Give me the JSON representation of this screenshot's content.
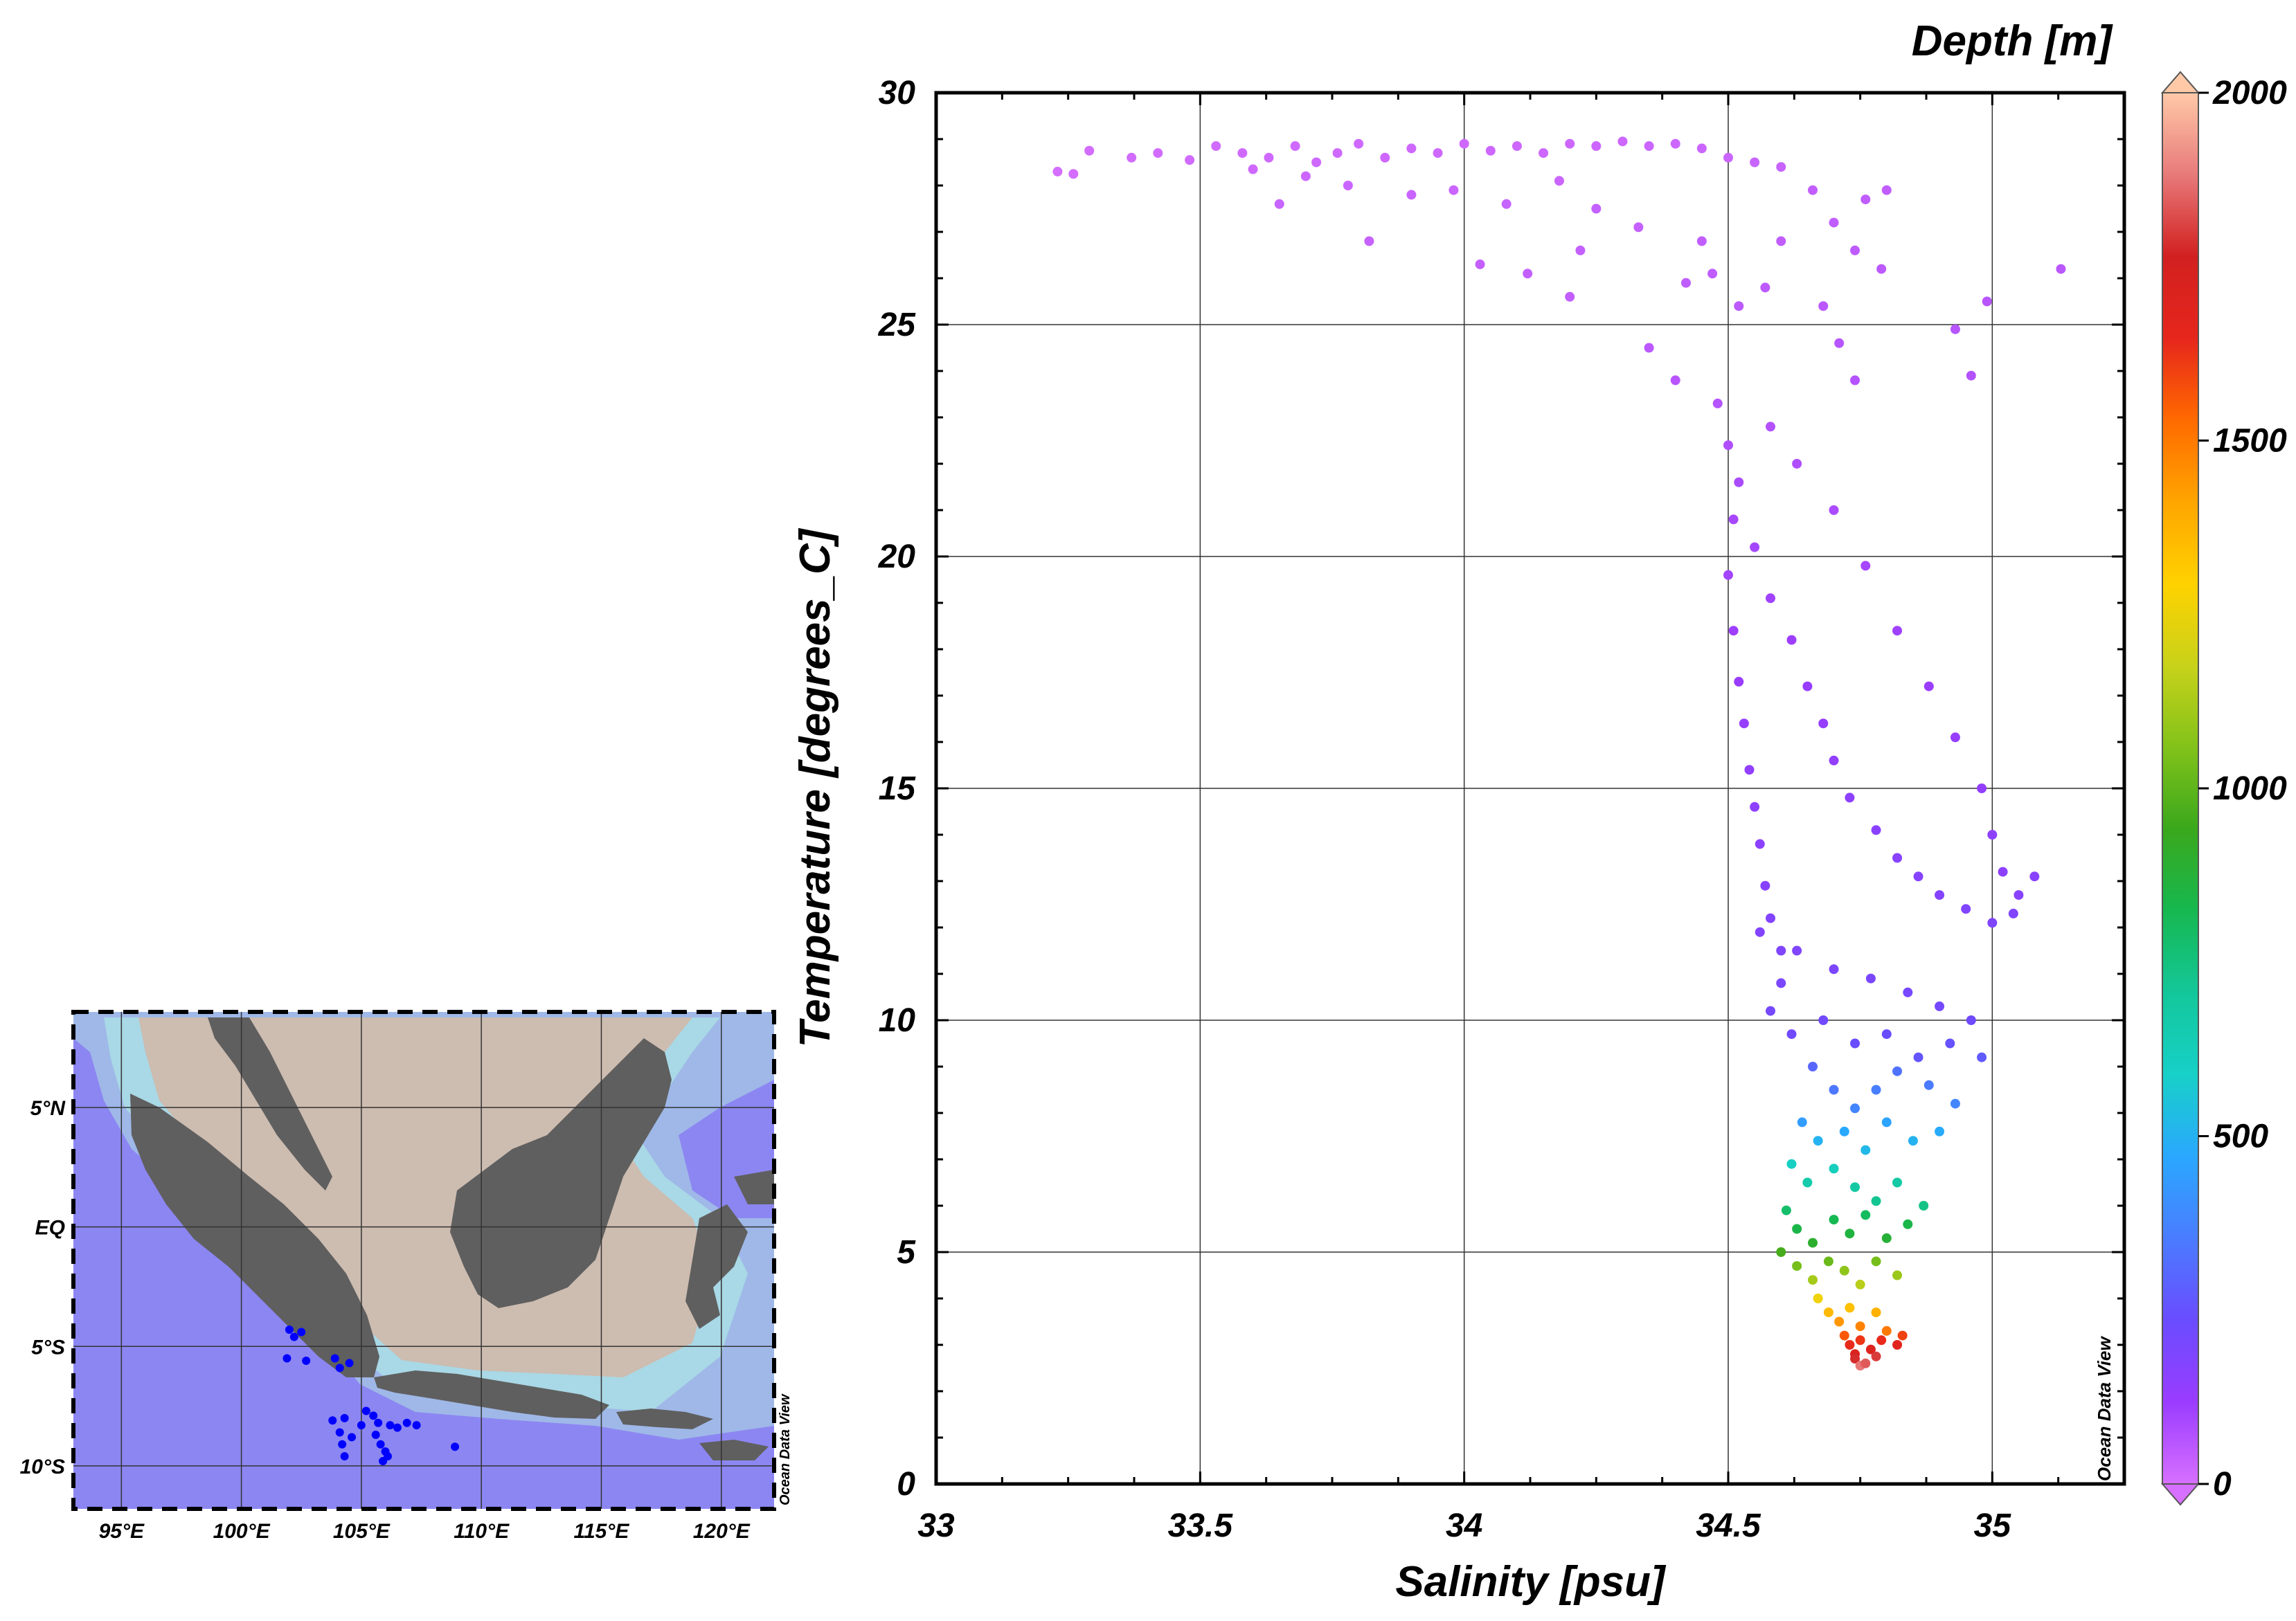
{
  "chart_data": [
    {
      "type": "scatter",
      "title": "",
      "xlabel": "Salinity [psu]",
      "ylabel": "Temperature [degrees_C]",
      "xlim": [
        33,
        35.25
      ],
      "ylim": [
        0,
        30
      ],
      "xticks": [
        33,
        33.5,
        34,
        34.5,
        35
      ],
      "xtick_labels": [
        "33",
        "33.5",
        "34",
        "34.5",
        "35"
      ],
      "yticks": [
        0,
        5,
        10,
        15,
        20,
        25,
        30
      ],
      "ytick_labels": [
        "0",
        "5",
        "10",
        "15",
        "20",
        "25",
        "30"
      ],
      "grid": true,
      "color_by": {
        "label": "Depth [m]",
        "range": [
          0,
          2000
        ],
        "ticks": [
          0,
          500,
          1000,
          1500,
          2000
        ],
        "tick_labels": [
          "0",
          "500",
          "1000",
          "1500",
          "2000"
        ],
        "colormap": [
          "#d770ff",
          "#9a3cff",
          "#6a4cff",
          "#4a7cff",
          "#2aa8ff",
          "#17d0c8",
          "#13c79a",
          "#16b850",
          "#3aa81c",
          "#82c21a",
          "#c8d21a",
          "#ffd200",
          "#ffa500",
          "#ff6a00",
          "#e6261c",
          "#d22020",
          "#e87a7a",
          "#ffc9a8"
        ]
      },
      "series": [
        {
          "points": [
            [
              33.23,
              28.3,
              5
            ],
            [
              33.26,
              28.25,
              6
            ],
            [
              33.29,
              28.75,
              8
            ],
            [
              33.37,
              28.6,
              10
            ],
            [
              33.42,
              28.7,
              10
            ],
            [
              33.48,
              28.55,
              12
            ],
            [
              33.53,
              28.85,
              12
            ],
            [
              33.58,
              28.7,
              14
            ],
            [
              33.63,
              28.6,
              15
            ],
            [
              33.68,
              28.85,
              14
            ],
            [
              33.72,
              28.5,
              18
            ],
            [
              33.76,
              28.7,
              18
            ],
            [
              33.8,
              28.9,
              16
            ],
            [
              33.85,
              28.6,
              20
            ],
            [
              33.9,
              28.8,
              18
            ],
            [
              33.95,
              28.7,
              18
            ],
            [
              34.0,
              28.9,
              18
            ],
            [
              34.05,
              28.75,
              20
            ],
            [
              34.1,
              28.85,
              20
            ],
            [
              34.15,
              28.7,
              20
            ],
            [
              34.2,
              28.9,
              22
            ],
            [
              34.25,
              28.85,
              22
            ],
            [
              34.3,
              28.95,
              20
            ],
            [
              34.35,
              28.85,
              24
            ],
            [
              34.4,
              28.9,
              22
            ],
            [
              34.45,
              28.8,
              24
            ],
            [
              34.5,
              28.6,
              26
            ],
            [
              34.55,
              28.5,
              28
            ],
            [
              34.6,
              28.4,
              30
            ],
            [
              33.6,
              28.35,
              18
            ],
            [
              33.7,
              28.2,
              22
            ],
            [
              33.78,
              28.0,
              26
            ],
            [
              33.9,
              27.8,
              28
            ],
            [
              33.98,
              27.9,
              26
            ],
            [
              34.08,
              27.6,
              30
            ],
            [
              34.18,
              28.1,
              26
            ],
            [
              34.25,
              27.5,
              34
            ],
            [
              33.82,
              26.8,
              32
            ],
            [
              33.65,
              27.6,
              28
            ],
            [
              34.03,
              26.3,
              36
            ],
            [
              34.12,
              26.1,
              38
            ],
            [
              34.2,
              25.6,
              40
            ],
            [
              34.22,
              26.6,
              36
            ],
            [
              34.33,
              27.1,
              34
            ],
            [
              34.45,
              26.8,
              40
            ],
            [
              34.47,
              26.1,
              46
            ],
            [
              34.52,
              25.4,
              52
            ],
            [
              34.57,
              25.8,
              50
            ],
            [
              34.6,
              26.8,
              44
            ],
            [
              34.66,
              27.9,
              40
            ],
            [
              34.7,
              27.2,
              44
            ],
            [
              34.74,
              26.6,
              48
            ],
            [
              34.76,
              27.7,
              44
            ],
            [
              34.8,
              27.9,
              42
            ],
            [
              34.68,
              25.4,
              56
            ],
            [
              34.71,
              24.6,
              62
            ],
            [
              34.74,
              23.8,
              66
            ],
            [
              34.79,
              26.2,
              52
            ],
            [
              34.93,
              24.9,
              62
            ],
            [
              34.96,
              23.9,
              70
            ],
            [
              34.99,
              25.5,
              60
            ],
            [
              35.13,
              26.2,
              56
            ],
            [
              34.42,
              25.9,
              46
            ],
            [
              34.35,
              24.5,
              54
            ],
            [
              34.4,
              23.8,
              60
            ],
            [
              34.48,
              23.3,
              66
            ],
            [
              34.5,
              22.4,
              76
            ],
            [
              34.52,
              21.6,
              84
            ],
            [
              34.51,
              20.8,
              92
            ],
            [
              34.5,
              19.6,
              100
            ],
            [
              34.51,
              18.4,
              110
            ],
            [
              34.52,
              17.3,
              120
            ],
            [
              34.53,
              16.4,
              130
            ],
            [
              34.54,
              15.4,
              138
            ],
            [
              34.55,
              14.6,
              146
            ],
            [
              34.56,
              13.8,
              154
            ],
            [
              34.57,
              12.9,
              164
            ],
            [
              34.58,
              12.2,
              172
            ],
            [
              34.6,
              11.5,
              182
            ],
            [
              34.55,
              20.2,
              96
            ],
            [
              34.58,
              19.1,
              104
            ],
            [
              34.62,
              18.2,
              112
            ],
            [
              34.65,
              17.2,
              122
            ],
            [
              34.68,
              16.4,
              130
            ],
            [
              34.7,
              15.6,
              138
            ],
            [
              34.73,
              14.8,
              146
            ],
            [
              34.78,
              14.1,
              154
            ],
            [
              34.82,
              13.5,
              160
            ],
            [
              34.86,
              13.1,
              166
            ],
            [
              34.9,
              12.7,
              172
            ],
            [
              34.95,
              12.4,
              178
            ],
            [
              35.0,
              12.1,
              184
            ],
            [
              35.04,
              12.3,
              180
            ],
            [
              34.58,
              22.8,
              70
            ],
            [
              34.63,
              22.0,
              76
            ],
            [
              34.7,
              21.0,
              84
            ],
            [
              34.76,
              19.8,
              94
            ],
            [
              34.82,
              18.4,
              106
            ],
            [
              34.88,
              17.2,
              116
            ],
            [
              34.93,
              16.1,
              126
            ],
            [
              34.98,
              15.0,
              136
            ],
            [
              35.0,
              14.0,
              146
            ],
            [
              35.02,
              13.2,
              154
            ],
            [
              35.05,
              12.7,
              160
            ],
            [
              35.08,
              13.1,
              156
            ],
            [
              34.56,
              11.9,
              176
            ],
            [
              34.63,
              11.5,
              182
            ],
            [
              34.7,
              11.1,
              190
            ],
            [
              34.77,
              10.9,
              196
            ],
            [
              34.84,
              10.6,
              204
            ],
            [
              34.9,
              10.3,
              212
            ],
            [
              34.96,
              10.0,
              220
            ],
            [
              34.6,
              10.8,
              196
            ],
            [
              34.58,
              10.2,
              206
            ],
            [
              34.62,
              9.7,
              220
            ],
            [
              34.68,
              10.0,
              216
            ],
            [
              34.74,
              9.5,
              240
            ],
            [
              34.8,
              9.7,
              236
            ],
            [
              34.86,
              9.2,
              258
            ],
            [
              34.92,
              9.5,
              250
            ],
            [
              34.98,
              9.2,
              270
            ],
            [
              34.66,
              9.0,
              300
            ],
            [
              34.7,
              8.5,
              340
            ],
            [
              34.74,
              8.1,
              380
            ],
            [
              34.78,
              8.5,
              360
            ],
            [
              34.82,
              8.9,
              330
            ],
            [
              34.88,
              8.6,
              350
            ],
            [
              34.93,
              8.2,
              380
            ],
            [
              34.64,
              7.8,
              440
            ],
            [
              34.67,
              7.4,
              500
            ],
            [
              34.72,
              7.6,
              470
            ],
            [
              34.76,
              7.2,
              520
            ],
            [
              34.8,
              7.8,
              460
            ],
            [
              34.85,
              7.4,
              500
            ],
            [
              34.9,
              7.6,
              480
            ],
            [
              34.62,
              6.9,
              600
            ],
            [
              34.65,
              6.5,
              660
            ],
            [
              34.7,
              6.8,
              620
            ],
            [
              34.74,
              6.4,
              680
            ],
            [
              34.78,
              6.1,
              720
            ],
            [
              34.82,
              6.5,
              680
            ],
            [
              34.87,
              6.0,
              740
            ],
            [
              34.61,
              5.9,
              780
            ],
            [
              34.63,
              5.5,
              840
            ],
            [
              34.66,
              5.2,
              900
            ],
            [
              34.7,
              5.7,
              820
            ],
            [
              34.73,
              5.4,
              860
            ],
            [
              34.76,
              5.8,
              800
            ],
            [
              34.8,
              5.3,
              880
            ],
            [
              34.84,
              5.6,
              840
            ],
            [
              34.6,
              5.0,
              960
            ],
            [
              34.63,
              4.7,
              1040
            ],
            [
              34.66,
              4.4,
              1120
            ],
            [
              34.69,
              4.8,
              1020
            ],
            [
              34.72,
              4.6,
              1080
            ],
            [
              34.75,
              4.3,
              1150
            ],
            [
              34.78,
              4.8,
              1040
            ],
            [
              34.82,
              4.5,
              1100
            ],
            [
              34.67,
              4.0,
              1260
            ],
            [
              34.69,
              3.7,
              1360
            ],
            [
              34.71,
              3.5,
              1440
            ],
            [
              34.73,
              3.8,
              1340
            ],
            [
              34.75,
              3.4,
              1480
            ],
            [
              34.78,
              3.7,
              1380
            ],
            [
              34.8,
              3.3,
              1500
            ],
            [
              34.72,
              3.2,
              1560
            ],
            [
              34.73,
              3.0,
              1640
            ],
            [
              34.74,
              2.8,
              1720
            ],
            [
              34.75,
              3.1,
              1620
            ],
            [
              34.77,
              2.9,
              1700
            ],
            [
              34.79,
              3.1,
              1640
            ],
            [
              34.82,
              3.0,
              1680
            ],
            [
              34.74,
              2.7,
              1780
            ],
            [
              34.75,
              2.55,
              1880
            ],
            [
              34.76,
              2.6,
              1840
            ],
            [
              34.78,
              2.75,
              1800
            ],
            [
              34.83,
              3.2,
              1600
            ]
          ]
        }
      ]
    },
    {
      "type": "map",
      "xticks": [
        95,
        100,
        105,
        110,
        115,
        120
      ],
      "xtick_labels": [
        "95°E",
        "100°E",
        "105°E",
        "110°E",
        "115°E",
        "120°E"
      ],
      "yticks": [
        5,
        0,
        -5,
        -10
      ],
      "ytick_labels": [
        "5°N",
        "EQ",
        "5°S",
        "10°S"
      ],
      "lon_range": [
        93,
        122.2
      ],
      "lat_range": [
        -11.8,
        9
      ],
      "station_color": "#0000ff",
      "stations": [
        [
          102.0,
          -4.3
        ],
        [
          102.2,
          -4.6
        ],
        [
          102.5,
          -4.4
        ],
        [
          101.9,
          -5.5
        ],
        [
          102.7,
          -5.6
        ],
        [
          103.9,
          -5.5
        ],
        [
          104.1,
          -5.9
        ],
        [
          104.5,
          -5.7
        ],
        [
          103.8,
          -8.1
        ],
        [
          104.3,
          -8.0
        ],
        [
          104.1,
          -8.6
        ],
        [
          104.2,
          -9.1
        ],
        [
          104.3,
          -9.6
        ],
        [
          104.6,
          -8.8
        ],
        [
          105.2,
          -7.7
        ],
        [
          105.5,
          -7.9
        ],
        [
          105.7,
          -8.2
        ],
        [
          105.6,
          -8.7
        ],
        [
          105.8,
          -9.1
        ],
        [
          106.0,
          -9.4
        ],
        [
          105.9,
          -9.8
        ],
        [
          106.2,
          -8.3
        ],
        [
          106.5,
          -8.4
        ],
        [
          106.9,
          -8.2
        ],
        [
          107.3,
          -8.3
        ],
        [
          108.9,
          -9.2
        ],
        [
          105.0,
          -8.3
        ],
        [
          106.1,
          -9.6
        ]
      ]
    }
  ],
  "credits": {
    "map": "Ocean Data View",
    "colorbar": "Ocean Data View"
  }
}
